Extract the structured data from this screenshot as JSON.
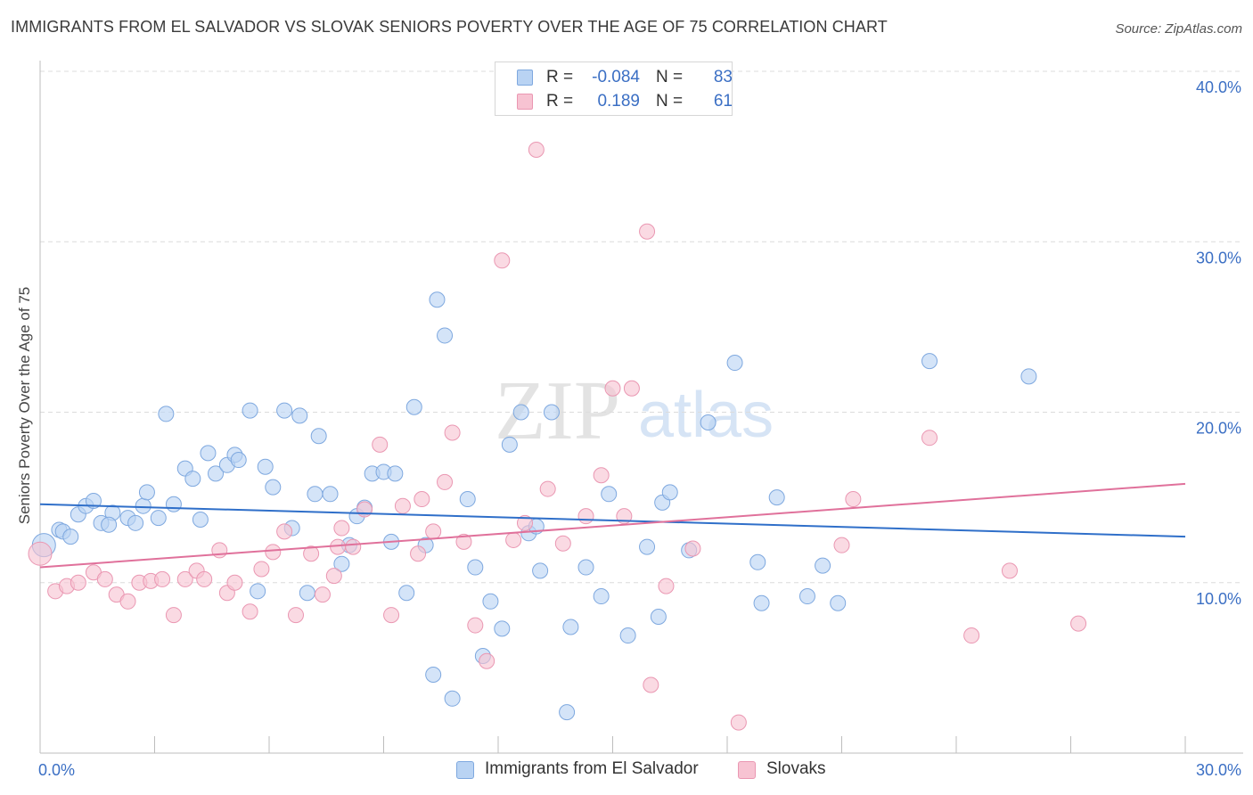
{
  "title": "IMMIGRANTS FROM EL SALVADOR VS SLOVAK SENIORS POVERTY OVER THE AGE OF 75 CORRELATION CHART",
  "source": "Source: ZipAtlas.com",
  "watermark": {
    "zip": "ZIP",
    "atlas": "atlas"
  },
  "colors": {
    "blue_fill": "#b9d3f3",
    "blue_stroke": "#7ea8df",
    "blue_line": "#2f6fc9",
    "pink_fill": "#f7c3d2",
    "pink_stroke": "#ea97b2",
    "pink_line": "#e0719b",
    "tick_label": "#3b6fc4",
    "grid": "#dcdcdc"
  },
  "legend": {
    "r_label": "R =",
    "n_label": "N =",
    "series": [
      {
        "r": "-0.084",
        "n": "83"
      },
      {
        "r": "0.189",
        "n": "61"
      }
    ]
  },
  "chart_data": {
    "type": "scatter",
    "title": "IMMIGRANTS FROM EL SALVADOR VS SLOVAK SENIORS POVERTY OVER THE AGE OF 75 CORRELATION CHART",
    "xlabel": "",
    "ylabel": "Seniors Poverty Over the Age of 75",
    "xlim": [
      0,
      30
    ],
    "ylim": [
      0,
      40
    ],
    "x_tick_labels": [
      "0.0%",
      "30.0%"
    ],
    "y_ticks": [
      10,
      20,
      30,
      40
    ],
    "y_tick_labels": [
      "10.0%",
      "20.0%",
      "30.0%",
      "40.0%"
    ],
    "grid": "horizontal dashed",
    "legend_position": "top-center",
    "series": [
      {
        "name": "Immigrants from El Salvador",
        "color": "#b9d3f3",
        "trend": {
          "x": [
            0,
            30
          ],
          "y": [
            14.6,
            12.7
          ]
        },
        "points": [
          [
            0.1,
            12.2
          ],
          [
            0.5,
            13.1
          ],
          [
            0.6,
            13.0
          ],
          [
            0.8,
            12.7
          ],
          [
            1.0,
            14.0
          ],
          [
            1.2,
            14.5
          ],
          [
            1.4,
            14.8
          ],
          [
            1.6,
            13.5
          ],
          [
            1.9,
            14.1
          ],
          [
            1.8,
            13.4
          ],
          [
            2.3,
            13.8
          ],
          [
            2.5,
            13.5
          ],
          [
            2.7,
            14.5
          ],
          [
            2.8,
            15.3
          ],
          [
            3.1,
            13.8
          ],
          [
            3.3,
            19.9
          ],
          [
            3.5,
            14.6
          ],
          [
            3.8,
            16.7
          ],
          [
            4.0,
            16.1
          ],
          [
            4.2,
            13.7
          ],
          [
            4.4,
            17.6
          ],
          [
            4.6,
            16.4
          ],
          [
            4.9,
            16.9
          ],
          [
            5.1,
            17.5
          ],
          [
            5.2,
            17.2
          ],
          [
            5.5,
            20.1
          ],
          [
            5.7,
            9.5
          ],
          [
            5.9,
            16.8
          ],
          [
            6.1,
            15.6
          ],
          [
            6.4,
            20.1
          ],
          [
            6.6,
            13.2
          ],
          [
            6.8,
            19.8
          ],
          [
            7.0,
            9.4
          ],
          [
            7.2,
            15.2
          ],
          [
            7.3,
            18.6
          ],
          [
            7.6,
            15.2
          ],
          [
            7.9,
            11.1
          ],
          [
            8.1,
            12.2
          ],
          [
            8.3,
            13.9
          ],
          [
            8.5,
            14.4
          ],
          [
            8.7,
            16.4
          ],
          [
            9.0,
            16.5
          ],
          [
            9.2,
            12.4
          ],
          [
            9.3,
            16.4
          ],
          [
            9.6,
            9.4
          ],
          [
            9.8,
            20.3
          ],
          [
            10.1,
            12.2
          ],
          [
            10.3,
            4.6
          ],
          [
            10.4,
            26.6
          ],
          [
            10.6,
            24.5
          ],
          [
            10.8,
            3.2
          ],
          [
            11.2,
            14.9
          ],
          [
            11.4,
            10.9
          ],
          [
            11.6,
            5.7
          ],
          [
            11.8,
            8.9
          ],
          [
            12.1,
            7.3
          ],
          [
            12.3,
            18.1
          ],
          [
            12.6,
            20.0
          ],
          [
            12.8,
            12.9
          ],
          [
            13.0,
            13.3
          ],
          [
            13.1,
            10.7
          ],
          [
            13.4,
            20.0
          ],
          [
            13.8,
            2.4
          ],
          [
            13.9,
            7.4
          ],
          [
            14.3,
            10.9
          ],
          [
            14.7,
            9.2
          ],
          [
            14.9,
            15.2
          ],
          [
            15.4,
            6.9
          ],
          [
            15.9,
            12.1
          ],
          [
            16.2,
            8.0
          ],
          [
            16.3,
            14.7
          ],
          [
            16.5,
            15.3
          ],
          [
            17.0,
            11.9
          ],
          [
            17.5,
            19.4
          ],
          [
            18.2,
            22.9
          ],
          [
            18.8,
            11.2
          ],
          [
            18.9,
            8.8
          ],
          [
            19.3,
            15.0
          ],
          [
            20.1,
            9.2
          ],
          [
            20.5,
            11.0
          ],
          [
            20.9,
            8.8
          ],
          [
            23.3,
            23.0
          ],
          [
            25.9,
            22.1
          ]
        ]
      },
      {
        "name": "Slovaks",
        "color": "#f7c3d2",
        "trend": {
          "x": [
            0,
            30
          ],
          "y": [
            10.9,
            15.8
          ]
        },
        "points": [
          [
            0.0,
            11.7
          ],
          [
            0.4,
            9.5
          ],
          [
            0.7,
            9.8
          ],
          [
            1.0,
            10.0
          ],
          [
            1.4,
            10.6
          ],
          [
            1.7,
            10.2
          ],
          [
            2.0,
            9.3
          ],
          [
            2.3,
            8.9
          ],
          [
            2.6,
            10.0
          ],
          [
            2.9,
            10.1
          ],
          [
            3.2,
            10.2
          ],
          [
            3.5,
            8.1
          ],
          [
            3.8,
            10.2
          ],
          [
            4.1,
            10.7
          ],
          [
            4.3,
            10.2
          ],
          [
            4.7,
            11.9
          ],
          [
            4.9,
            9.4
          ],
          [
            5.1,
            10.0
          ],
          [
            5.5,
            8.3
          ],
          [
            5.8,
            10.8
          ],
          [
            6.1,
            11.8
          ],
          [
            6.4,
            13.0
          ],
          [
            6.7,
            8.1
          ],
          [
            7.1,
            11.7
          ],
          [
            7.4,
            9.3
          ],
          [
            7.7,
            10.4
          ],
          [
            7.8,
            12.1
          ],
          [
            7.9,
            13.2
          ],
          [
            8.2,
            12.1
          ],
          [
            8.5,
            14.3
          ],
          [
            8.9,
            18.1
          ],
          [
            9.2,
            8.1
          ],
          [
            9.5,
            14.5
          ],
          [
            9.9,
            11.7
          ],
          [
            10.0,
            14.9
          ],
          [
            10.3,
            13.0
          ],
          [
            10.6,
            15.9
          ],
          [
            10.8,
            18.8
          ],
          [
            11.1,
            12.4
          ],
          [
            11.4,
            7.5
          ],
          [
            11.7,
            5.4
          ],
          [
            12.1,
            28.9
          ],
          [
            12.4,
            12.5
          ],
          [
            12.7,
            13.5
          ],
          [
            13.0,
            35.4
          ],
          [
            13.3,
            15.5
          ],
          [
            13.7,
            12.3
          ],
          [
            14.3,
            13.9
          ],
          [
            14.7,
            16.3
          ],
          [
            15.0,
            21.4
          ],
          [
            15.3,
            13.9
          ],
          [
            15.5,
            21.4
          ],
          [
            15.9,
            30.6
          ],
          [
            16.0,
            4.0
          ],
          [
            16.4,
            9.8
          ],
          [
            17.1,
            12.0
          ],
          [
            18.3,
            1.8
          ],
          [
            21.0,
            12.2
          ],
          [
            21.3,
            14.9
          ],
          [
            23.3,
            18.5
          ],
          [
            24.4,
            6.9
          ],
          [
            25.4,
            10.7
          ],
          [
            27.2,
            7.6
          ]
        ]
      }
    ]
  }
}
